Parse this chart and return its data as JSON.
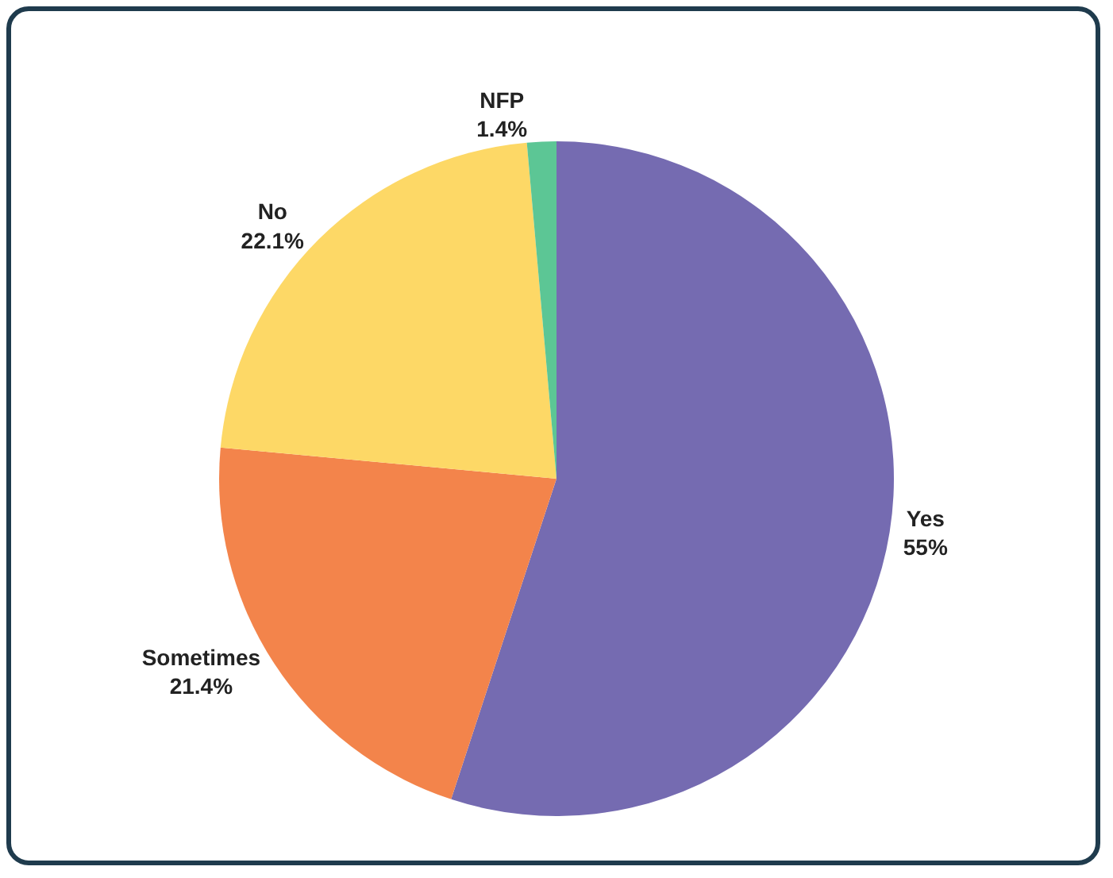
{
  "chart_data": {
    "type": "pie",
    "categories": [
      "Yes",
      "Sometimes",
      "No",
      "NFP"
    ],
    "values": [
      55,
      21.4,
      22.1,
      1.4
    ],
    "colors": [
      "#756bb1",
      "#f3844b",
      "#fdd866",
      "#5cc695"
    ],
    "value_labels": [
      "55%",
      "21.4%",
      "22.1%",
      "1.4%"
    ],
    "legend": false
  }
}
